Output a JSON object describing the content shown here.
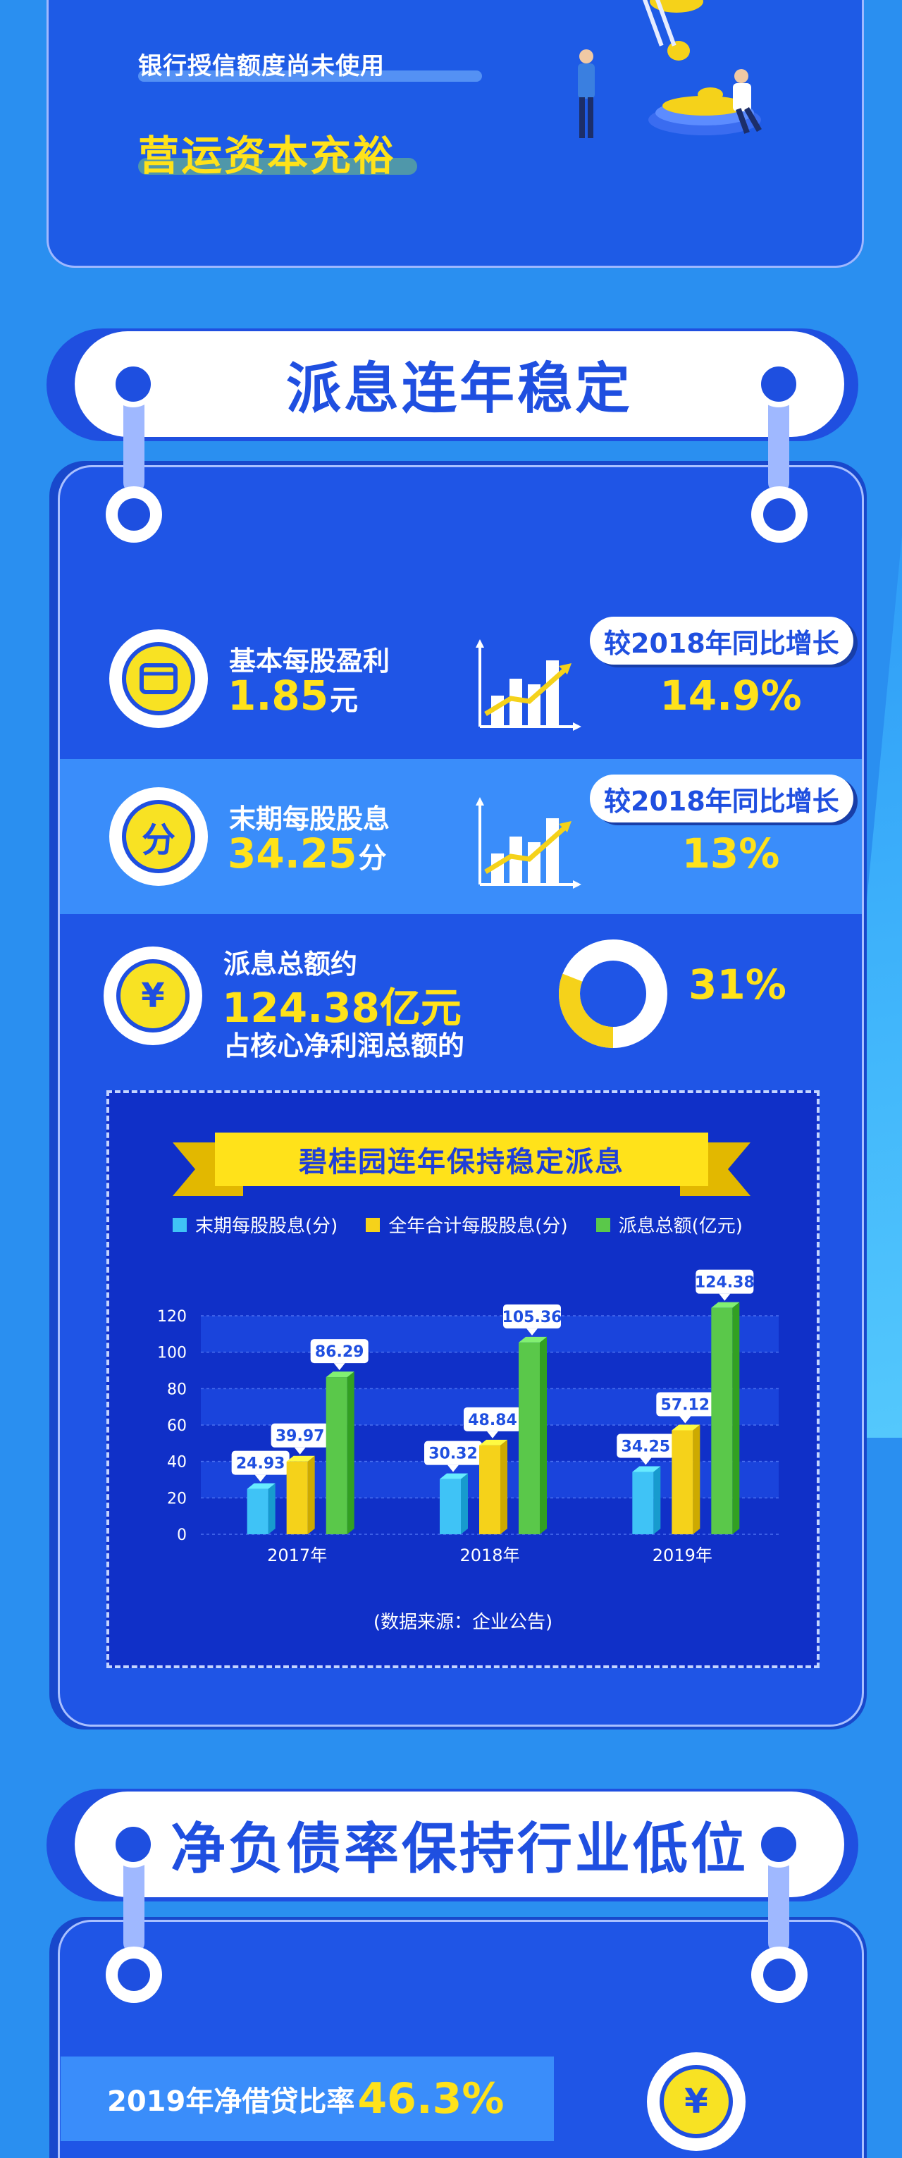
{
  "top": {
    "pill_text": "银行授信额度尚未使用",
    "highlight_text": "营运资本充裕"
  },
  "section1": {
    "title": "派息连年稳定",
    "metrics": [
      {
        "label": "基本每股盈利",
        "value": "1.85",
        "unit": "元",
        "growth_label": "较2018年同比增长",
        "growth_value": "14.9%",
        "icon": "wallet-icon"
      },
      {
        "label": "末期每股股息",
        "value": "34.25",
        "unit": "分",
        "growth_label": "较2018年同比增长",
        "growth_value": "13%",
        "icon_text": "分"
      },
      {
        "label": "派息总额约",
        "value": "124.38亿元",
        "sublabel": "占核心净利润总额的",
        "share_value": "31%",
        "share_fraction": 0.31,
        "icon_text": "¥"
      }
    ]
  },
  "chart": {
    "title": "碧桂园连年保持稳定派息",
    "source": "(数据来源：企业公告)"
  },
  "chart_data": {
    "type": "bar",
    "title": "碧桂园连年保持稳定派息",
    "categories": [
      "2017年",
      "2018年",
      "2019年"
    ],
    "series": [
      {
        "name": "末期每股股息(分)",
        "values": [
          24.93,
          30.32,
          34.25
        ],
        "color": "#3fc3f6"
      },
      {
        "name": "全年合计每股股息(分)",
        "values": [
          39.97,
          48.84,
          57.12
        ],
        "color": "#f5d21a"
      },
      {
        "name": "派息总额(亿元)",
        "values": [
          86.29,
          105.36,
          124.38
        ],
        "color": "#5ac84a"
      }
    ],
    "yticks": [
      "0",
      "20",
      "40",
      "60",
      "80",
      "100",
      "120"
    ],
    "ylim": [
      0,
      120
    ],
    "grid": true,
    "legend": "top"
  },
  "section2": {
    "title": "净负债率保持行业低位",
    "ratio_label": "2019年净借贷比率",
    "ratio_value": "46.3%",
    "icon_text": "¥"
  }
}
